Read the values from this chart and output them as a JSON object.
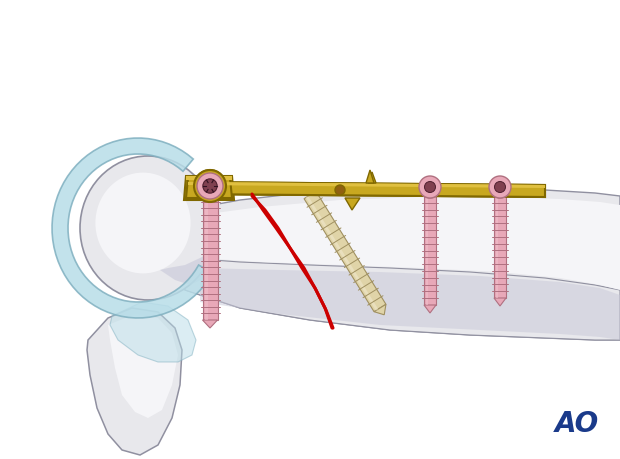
{
  "bg_color": "#ffffff",
  "bone_color": "#e8e8ec",
  "bone_outline": "#9090a0",
  "bone_highlight": "#f5f5f8",
  "bone_shadow": "#c8c8d8",
  "cartilage_color": "#b8dde8",
  "cartilage_outline": "#80b0c0",
  "plate_color": "#c8a820",
  "plate_outline": "#806800",
  "plate_highlight": "#e0c040",
  "screw_pink": "#e8a8b8",
  "screw_pink2": "#f0c0cc",
  "screw_outline": "#b07080",
  "screw_beige": "#e0d4a8",
  "screw_beige2": "#f0e8cc",
  "screw_beige_outline": "#a09060",
  "screw_head_dark": "#804050",
  "ao_color": "#1a3a8a",
  "fracture_color": "#cc0000"
}
